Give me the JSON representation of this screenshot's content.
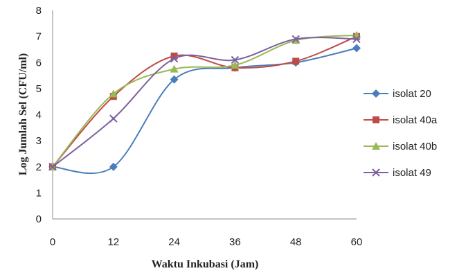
{
  "chart_data": {
    "type": "line",
    "title": "",
    "xlabel": "Waktu Inkubasi (Jam)",
    "ylabel": "Log Jumlah Sel (CFU/ml)",
    "x": [
      0,
      12,
      24,
      36,
      48,
      60
    ],
    "x_ticks": [
      "0",
      "12",
      "24",
      "36",
      "48",
      "60"
    ],
    "y_ticks": [
      "0",
      "1",
      "2",
      "3",
      "4",
      "5",
      "6",
      "7",
      "8"
    ],
    "xlim": [
      0,
      60
    ],
    "ylim": [
      0,
      8
    ],
    "grid": false,
    "smooth": true,
    "legend_position": "right",
    "series": [
      {
        "name": "isolat 20",
        "marker": "diamond",
        "color": "#4a7ebb",
        "values": [
          2.0,
          2.0,
          5.35,
          5.8,
          6.0,
          6.55
        ]
      },
      {
        "name": "isolat 40a",
        "marker": "square",
        "color": "#be4b48",
        "values": [
          2.0,
          4.7,
          6.25,
          5.8,
          6.05,
          7.0
        ]
      },
      {
        "name": "isolat 40b",
        "marker": "triangle",
        "color": "#98b954",
        "values": [
          2.0,
          4.8,
          5.75,
          5.9,
          6.85,
          7.05
        ]
      },
      {
        "name": "isolat 49",
        "marker": "x",
        "color": "#7d60a0",
        "values": [
          2.0,
          3.85,
          6.15,
          6.1,
          6.9,
          6.9
        ]
      }
    ]
  }
}
